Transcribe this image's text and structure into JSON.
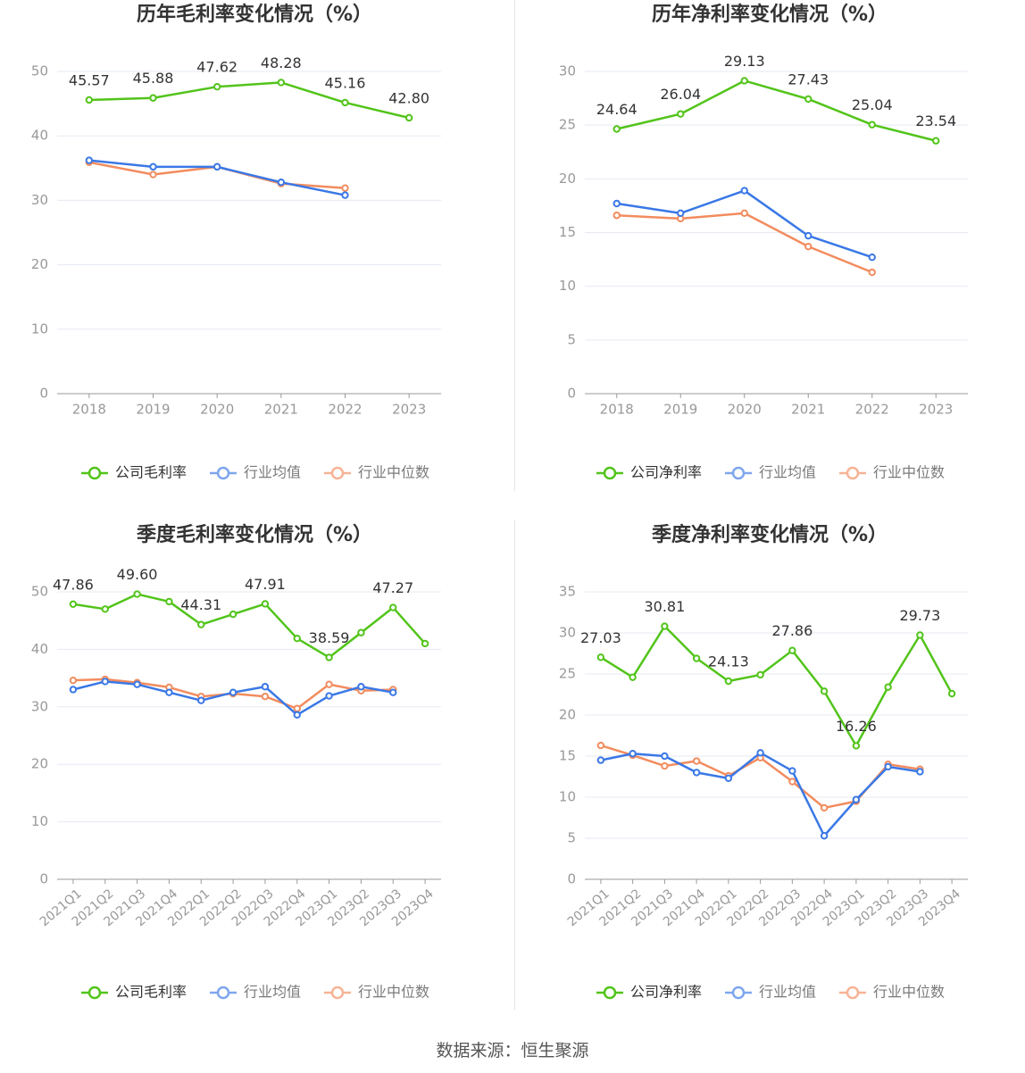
{
  "source": "数据来源：恒生聚源",
  "colors": {
    "company": "#52c41a",
    "avg": "#3a78e6",
    "median": "#f28c5e",
    "grid": "#e6e9f2",
    "axis": "#999999",
    "tick_text": "#999999",
    "label_text": "#333333",
    "title_text": "#333333"
  },
  "chart_data": [
    {
      "type": "line",
      "title": "历年毛利率变化情况（%）",
      "categories": [
        "2018",
        "2019",
        "2020",
        "2021",
        "2022",
        "2023"
      ],
      "ylim": [
        0,
        50
      ],
      "yticks": [
        0,
        10,
        20,
        30,
        40,
        50
      ],
      "grid": true,
      "legend_position": "bottom",
      "series": [
        {
          "name": "公司毛利率",
          "key": "company",
          "values": [
            45.57,
            45.88,
            47.62,
            48.28,
            45.16,
            42.8
          ],
          "labels": [
            "45.57",
            "45.88",
            "47.62",
            "48.28",
            "45.16",
            "42.80"
          ]
        },
        {
          "name": "行业均值",
          "key": "avg",
          "values": [
            36.2,
            35.2,
            35.2,
            32.8,
            30.8,
            null
          ]
        },
        {
          "name": "行业中位数",
          "key": "median",
          "values": [
            35.9,
            34.0,
            35.2,
            32.6,
            31.9,
            null
          ]
        }
      ]
    },
    {
      "type": "line",
      "title": "历年净利率变化情况（%）",
      "categories": [
        "2018",
        "2019",
        "2020",
        "2021",
        "2022",
        "2023"
      ],
      "ylim": [
        0,
        30
      ],
      "yticks": [
        0,
        5,
        10,
        15,
        20,
        25,
        30
      ],
      "grid": true,
      "legend_position": "bottom",
      "series": [
        {
          "name": "公司净利率",
          "key": "company",
          "values": [
            24.64,
            26.04,
            29.13,
            27.43,
            25.04,
            23.54
          ],
          "labels": [
            "24.64",
            "26.04",
            "29.13",
            "27.43",
            "25.04",
            "23.54"
          ]
        },
        {
          "name": "行业均值",
          "key": "avg",
          "values": [
            17.7,
            16.8,
            18.9,
            14.7,
            12.7,
            null
          ]
        },
        {
          "name": "行业中位数",
          "key": "median",
          "values": [
            16.6,
            16.3,
            16.8,
            13.7,
            11.3,
            null
          ]
        }
      ]
    },
    {
      "type": "line",
      "title": "季度毛利率变化情况（%）",
      "categories": [
        "2021Q1",
        "2021Q2",
        "2021Q3",
        "2021Q4",
        "2022Q1",
        "2022Q2",
        "2022Q3",
        "2022Q4",
        "2023Q1",
        "2023Q2",
        "2023Q3",
        "2023Q4"
      ],
      "ylim": [
        0,
        50
      ],
      "yticks": [
        0,
        10,
        20,
        30,
        40,
        50
      ],
      "grid": true,
      "legend_position": "bottom",
      "series": [
        {
          "name": "公司毛利率",
          "key": "company",
          "values": [
            47.86,
            47.0,
            49.6,
            48.3,
            44.31,
            46.1,
            47.91,
            41.9,
            38.59,
            42.9,
            47.27,
            41.0
          ],
          "labels": [
            "47.86",
            "",
            "49.60",
            "",
            "44.31",
            "",
            "47.91",
            "",
            "38.59",
            "",
            "47.27",
            ""
          ]
        },
        {
          "name": "行业均值",
          "key": "avg",
          "values": [
            33.0,
            34.4,
            33.9,
            32.5,
            31.1,
            32.5,
            33.5,
            28.6,
            31.9,
            33.5,
            32.5,
            null
          ]
        },
        {
          "name": "行业中位数",
          "key": "median",
          "values": [
            34.6,
            34.8,
            34.2,
            33.4,
            31.8,
            32.3,
            31.8,
            29.7,
            33.9,
            32.8,
            33.0,
            null
          ]
        }
      ]
    },
    {
      "type": "line",
      "title": "季度净利率变化情况（%）",
      "categories": [
        "2021Q1",
        "2021Q2",
        "2021Q3",
        "2021Q4",
        "2022Q1",
        "2022Q2",
        "2022Q3",
        "2022Q4",
        "2023Q1",
        "2023Q2",
        "2023Q3",
        "2023Q4"
      ],
      "ylim": [
        0,
        35
      ],
      "yticks": [
        0,
        5,
        10,
        15,
        20,
        25,
        30,
        35
      ],
      "grid": true,
      "legend_position": "bottom",
      "series": [
        {
          "name": "公司净利率",
          "key": "company",
          "values": [
            27.03,
            24.6,
            30.81,
            26.9,
            24.13,
            24.9,
            27.86,
            22.9,
            16.26,
            23.4,
            29.73,
            22.6
          ],
          "labels": [
            "27.03",
            "",
            "30.81",
            "",
            "24.13",
            "",
            "27.86",
            "",
            "16.26",
            "",
            "29.73",
            ""
          ]
        },
        {
          "name": "行业均值",
          "key": "avg",
          "values": [
            14.5,
            15.3,
            15.0,
            13.0,
            12.3,
            15.4,
            13.2,
            5.3,
            9.7,
            13.7,
            13.1,
            null
          ]
        },
        {
          "name": "行业中位数",
          "key": "median",
          "values": [
            16.3,
            15.1,
            13.8,
            14.4,
            12.6,
            14.8,
            11.9,
            8.7,
            9.5,
            14.0,
            13.4,
            null
          ]
        }
      ]
    }
  ]
}
